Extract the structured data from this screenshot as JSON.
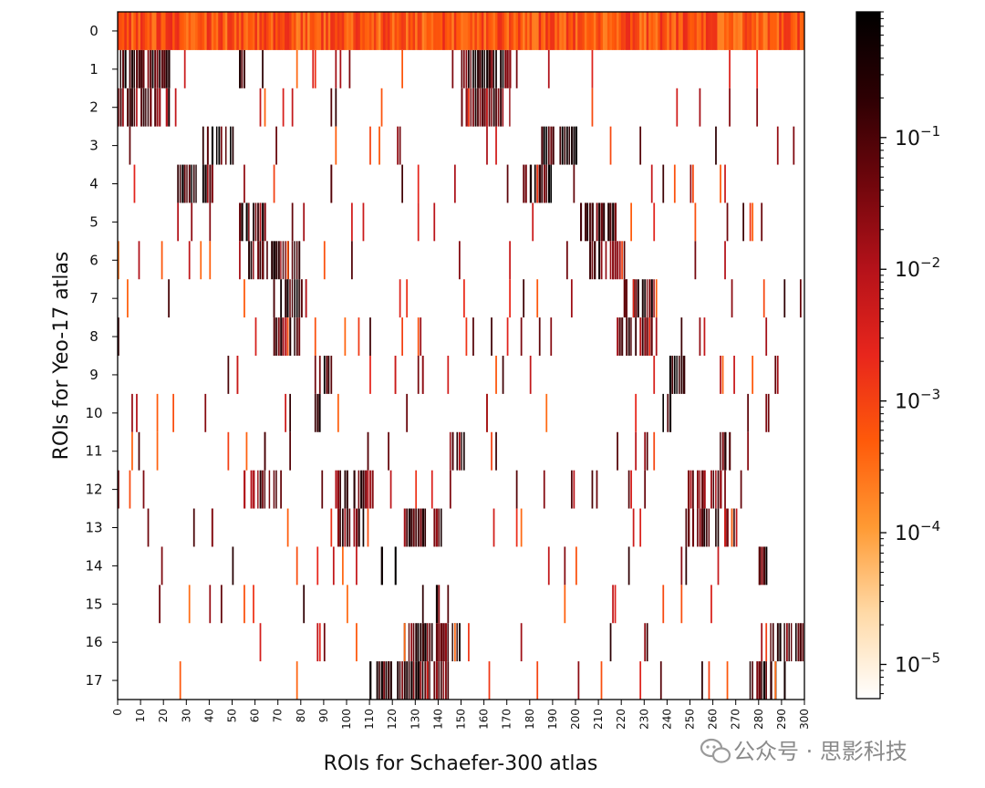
{
  "chart_data": {
    "type": "heatmap",
    "xlabel": "ROIs for Schaefer-300 atlas",
    "ylabel": "ROIs for Yeo-17 atlas",
    "x_ticks": [
      0,
      10,
      20,
      30,
      40,
      50,
      60,
      70,
      80,
      90,
      100,
      110,
      120,
      130,
      140,
      150,
      160,
      170,
      180,
      190,
      200,
      210,
      220,
      230,
      240,
      250,
      260,
      270,
      280,
      290,
      300
    ],
    "y_ticks": [
      0,
      1,
      2,
      3,
      4,
      5,
      6,
      7,
      8,
      9,
      10,
      11,
      12,
      13,
      14,
      15,
      16,
      17
    ],
    "xlim": [
      0,
      300
    ],
    "rows": 18,
    "colorbar": {
      "scale": "log",
      "range": [
        5.5e-06,
        0.9
      ],
      "tick_values": [
        1e-05,
        0.0001,
        0.001,
        0.01,
        0.1
      ],
      "tick_labels": [
        {
          "base": "10",
          "exp": "−5"
        },
        {
          "base": "10",
          "exp": "−4"
        },
        {
          "base": "10",
          "exp": "−3"
        },
        {
          "base": "10",
          "exp": "−2"
        },
        {
          "base": "10",
          "exp": "−1"
        }
      ],
      "colormap": "gist_heat_r",
      "colors": [
        "#ffffff",
        "#ffd9a6",
        "#ff9a33",
        "#ff5a0a",
        "#e8261c",
        "#b5121a",
        "#70060c",
        "#2d0003",
        "#000000"
      ]
    },
    "row_0": {
      "fill": "full",
      "typical_value": 0.0006
    },
    "segments": [
      {
        "row": 1,
        "ranges": [
          [
            1,
            23
          ],
          [
            53,
            57
          ],
          [
            150,
            172
          ]
        ],
        "value": 0.15
      },
      {
        "row": 2,
        "ranges": [
          [
            0,
            23
          ],
          [
            150,
            172
          ]
        ],
        "value": 0.06
      },
      {
        "row": 3,
        "ranges": [
          [
            37,
            53
          ],
          [
            185,
            201
          ]
        ],
        "value": 0.2
      },
      {
        "row": 4,
        "ranges": [
          [
            25,
            42
          ],
          [
            175,
            190
          ]
        ],
        "value": 0.2
      },
      {
        "row": 5,
        "ranges": [
          [
            53,
            65
          ],
          [
            202,
            218
          ]
        ],
        "value": 0.12
      },
      {
        "row": 6,
        "ranges": [
          [
            57,
            80
          ],
          [
            205,
            220
          ]
        ],
        "value": 0.1
      },
      {
        "row": 7,
        "ranges": [
          [
            68,
            84
          ],
          [
            220,
            238
          ]
        ],
        "value": 0.12
      },
      {
        "row": 8,
        "ranges": [
          [
            68,
            83
          ],
          [
            218,
            235
          ]
        ],
        "value": 0.05
      },
      {
        "row": 9,
        "ranges": [
          [
            89,
            96
          ],
          [
            241,
            248
          ]
        ],
        "value": 0.35
      },
      {
        "row": 10,
        "ranges": [
          [
            87,
            90
          ],
          [
            238,
            242
          ]
        ],
        "value": 0.35
      },
      {
        "row": 11,
        "ranges": [
          [
            108,
            110
          ],
          [
            145,
            152
          ],
          [
            263,
            268
          ]
        ],
        "value": 0.08
      },
      {
        "row": 12,
        "ranges": [
          [
            55,
            70
          ],
          [
            95,
            112
          ],
          [
            248,
            265
          ]
        ],
        "value": 0.06
      },
      {
        "row": 13,
        "ranges": [
          [
            95,
            108
          ],
          [
            125,
            142
          ],
          [
            248,
            270
          ]
        ],
        "value": 0.08
      },
      {
        "row": 14,
        "ranges": [
          [
            115,
            122
          ],
          [
            278,
            284
          ]
        ],
        "value": 0.15
      },
      {
        "row": 15,
        "ranges": [
          [
            138,
            141
          ]
        ],
        "value": 0.1
      },
      {
        "row": 16,
        "ranges": [
          [
            125,
            150
          ],
          [
            285,
            300
          ]
        ],
        "value": 0.12
      },
      {
        "row": 17,
        "ranges": [
          [
            110,
            145
          ],
          [
            276,
            292
          ]
        ],
        "value": 0.12
      }
    ]
  },
  "watermark": {
    "text": "公众号 · 思影科技",
    "icon": "wechat-icon"
  }
}
